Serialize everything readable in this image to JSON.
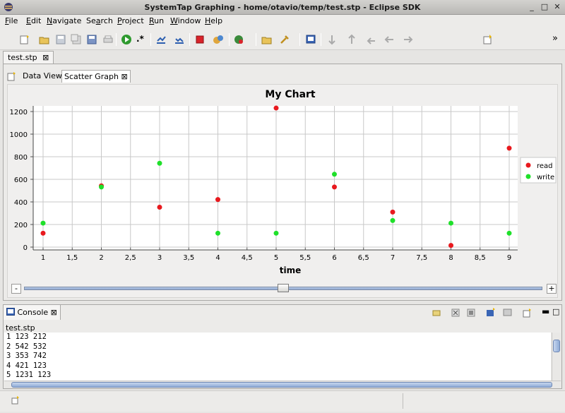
{
  "window": {
    "title": "SystemTap Graphing - home/otavio/temp/test.stp - Eclipse SDK"
  },
  "menu": [
    {
      "label": "File",
      "mnemonic": "F",
      "rest": "ile"
    },
    {
      "label": "Edit",
      "mnemonic": "E",
      "rest": "dit"
    },
    {
      "label": "Navigate",
      "mnemonic": "N",
      "rest": "avigate"
    },
    {
      "label": "Search",
      "mnemonic": "a",
      "pre": "Se",
      "rest": "rch"
    },
    {
      "label": "Project",
      "mnemonic": "P",
      "rest": "roject"
    },
    {
      "label": "Run",
      "mnemonic": "R",
      "rest": "un"
    },
    {
      "label": "Window",
      "mnemonic": "W",
      "rest": "indow"
    },
    {
      "label": "Help",
      "mnemonic": "H",
      "rest": "elp"
    }
  ],
  "toolbar": {
    "more_label": "»",
    "regex_label": ".*"
  },
  "editor": {
    "tab_label": "test.stp"
  },
  "subtabs": [
    {
      "label": "Data View",
      "active": false
    },
    {
      "label": "Scatter Graph",
      "active": true
    }
  ],
  "chart_data": {
    "type": "scatter",
    "title": "My Chart",
    "xlabel": "time",
    "ylabel": "",
    "xlim": [
      1,
      9
    ],
    "ylim": [
      0,
      1250
    ],
    "xticks": [
      "1",
      "1,5",
      "2",
      "2,5",
      "3",
      "3,5",
      "4",
      "4,5",
      "5",
      "5,5",
      "6",
      "6,5",
      "7",
      "7,5",
      "8",
      "8,5",
      "9"
    ],
    "yticks": [
      "0",
      "200",
      "400",
      "600",
      "800",
      "1000",
      "1200"
    ],
    "grid": true,
    "legend_position": "right",
    "series": [
      {
        "name": "read",
        "color": "#e8191e",
        "x": [
          1,
          2,
          3,
          4,
          5,
          6,
          7,
          8,
          9
        ],
        "y": [
          123,
          542,
          353,
          421,
          1231,
          532,
          310,
          15,
          876
        ]
      },
      {
        "name": "write",
        "color": "#1fe02a",
        "x": [
          1,
          2,
          3,
          4,
          5,
          6,
          7,
          8,
          9
        ],
        "y": [
          212,
          532,
          742,
          123,
          123,
          645,
          235,
          212,
          123
        ]
      }
    ]
  },
  "zoom": {
    "minus": "-",
    "plus": "+",
    "level": 0.5
  },
  "console": {
    "tab_label": "Console",
    "source": "test.stp",
    "lines": [
      "1  123  212",
      "2  542  532",
      "3  353  742",
      "4  421  123",
      "5  1231  123"
    ]
  }
}
